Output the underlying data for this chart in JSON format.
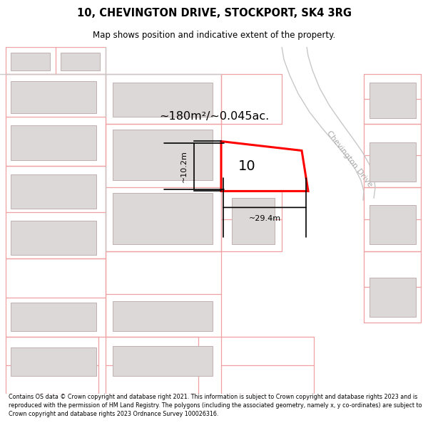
{
  "title_line1": "10, CHEVINGTON DRIVE, STOCKPORT, SK4 3RG",
  "title_line2": "Map shows position and indicative extent of the property.",
  "footer_text": "Contains OS data © Crown copyright and database right 2021. This information is subject to Crown copyright and database rights 2023 and is reproduced with the permission of HM Land Registry. The polygons (including the associated geometry, namely x, y co-ordinates) are subject to Crown copyright and database rights 2023 Ordnance Survey 100026316.",
  "area_label": "~180m²/~0.045ac.",
  "width_label": "~29.4m",
  "height_label": "~10.2m",
  "number_label": "10",
  "road_label": "Chevington Drive",
  "bg_color": "#ffffff",
  "plot_line_color": "#f0a0a0",
  "building_fill": "#ddd8d8",
  "building_edge": "#c0b0b0",
  "road_gray_color": "#c8c8c8",
  "highlight_color": "#ff0000",
  "dim_color": "#000000",
  "text_color": "#000000",
  "road_label_color": "#aaaaaa"
}
